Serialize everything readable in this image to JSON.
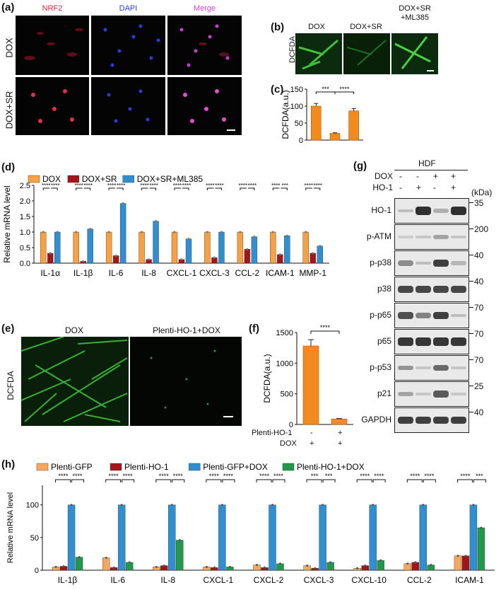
{
  "panels": {
    "a": {
      "label": "(a)",
      "columns": [
        "NRF2",
        "DAPI",
        "Merge"
      ],
      "rows": [
        "DOX",
        "DOX+SR"
      ],
      "colors": {
        "NRF2": "#e0203a",
        "DAPI": "#2a3cd8",
        "Merge": "#d040d8"
      }
    },
    "b": {
      "label": "(b)",
      "columns": [
        "DOX",
        "DOX+SR",
        "DOX+SR\n+ML385"
      ],
      "row": "DCFDA"
    },
    "c": {
      "label": "(c)",
      "ylabel": "DCFDA(a.u.)"
    },
    "d": {
      "label": "(d)",
      "ylabel": "Relative mRNA level"
    },
    "e": {
      "label": "(e)",
      "columns": [
        "DOX",
        "Plenti-HO-1+DOX"
      ],
      "row": "DCFDA"
    },
    "f": {
      "label": "(f)",
      "ylabel": "DCFDA(a.u.)",
      "rows": [
        {
          "name": "Plenti-HO-1",
          "values": [
            "-",
            "+"
          ]
        },
        {
          "name": "DOX",
          "values": [
            "+",
            "+"
          ]
        }
      ]
    },
    "g": {
      "label": "(g)",
      "header": "HDF",
      "kda_label": "(kDa)",
      "conditions": [
        {
          "name": "DOX",
          "values": [
            "-",
            "-",
            "+",
            "+"
          ]
        },
        {
          "name": "HO-1",
          "values": [
            "-",
            "+",
            "-",
            "+"
          ]
        }
      ],
      "blots": [
        {
          "name": "HO-1",
          "kda": "35",
          "bands": [
            0.1,
            0.95,
            0.2,
            0.95
          ]
        },
        {
          "name": "p-ATM",
          "kda": "200",
          "bands": [
            0.02,
            0.05,
            0.25,
            0.05
          ]
        },
        {
          "name": "p-p38",
          "kda": "40",
          "bands": [
            0.4,
            0.1,
            0.85,
            0.15
          ]
        },
        {
          "name": "p38",
          "kda": "40",
          "bands": [
            0.8,
            0.8,
            0.8,
            0.8
          ]
        },
        {
          "name": "p-p65",
          "kda": "70",
          "bands": [
            0.75,
            0.45,
            0.85,
            0.1
          ]
        },
        {
          "name": "p65",
          "kda": "70",
          "bands": [
            0.9,
            0.9,
            0.9,
            0.9
          ]
        },
        {
          "name": "p-p53",
          "kda": "70",
          "bands": [
            0.35,
            0.05,
            0.6,
            0.05
          ]
        },
        {
          "name": "p21",
          "kda": "25",
          "bands": [
            0.25,
            0.05,
            0.7,
            0.05
          ]
        },
        {
          "name": "GAPDH",
          "kda": "40",
          "bands": [
            0.85,
            0.85,
            0.85,
            0.85
          ]
        }
      ]
    },
    "h": {
      "label": "(h)",
      "ylabel": "Relative mRNA level"
    }
  },
  "chart_data": [
    {
      "id": "c",
      "type": "bar",
      "categories": [
        "DOX",
        "DOX+SR",
        "DOX+SR+ML385"
      ],
      "values": [
        100,
        20,
        86
      ],
      "ylabel": "DCFDA(a.u.)",
      "ylim": [
        0,
        150
      ],
      "yticks": [
        0,
        50,
        100,
        150
      ],
      "colors": [
        "#f28a1e",
        "#f28a1e",
        "#f28a1e"
      ],
      "significance": [
        {
          "from": 0,
          "to": 1,
          "label": "***"
        },
        {
          "from": 1,
          "to": 2,
          "label": "****"
        }
      ]
    },
    {
      "id": "d",
      "type": "bar",
      "categories": [
        "IL-1α",
        "IL-1β",
        "IL-6",
        "IL-8",
        "CXCL-1",
        "CXCL-3",
        "CCL-2",
        "ICAM-1",
        "MMP-1"
      ],
      "ylabel": "Relative mRNA level",
      "ylim": [
        0,
        2.5
      ],
      "yticks": [
        0.0,
        0.5,
        1.0,
        1.5,
        2.0,
        2.5
      ],
      "legend_position": "top",
      "series": [
        {
          "name": "DOX",
          "color": "#f7a142",
          "values": [
            1.0,
            1.0,
            1.0,
            1.0,
            1.0,
            1.0,
            1.0,
            1.0,
            1.0
          ]
        },
        {
          "name": "DOX+SR",
          "color": "#a31519",
          "values": [
            0.32,
            0.06,
            0.24,
            0.12,
            0.12,
            0.18,
            0.45,
            0.28,
            0.32
          ]
        },
        {
          "name": "DOX+SR+ML385",
          "color": "#2f8fd0",
          "values": [
            1.0,
            1.1,
            1.92,
            1.35,
            0.78,
            1.0,
            0.85,
            0.88,
            0.55
          ]
        }
      ],
      "significance": [
        "****",
        "****",
        "****",
        "****",
        "****",
        "****",
        "****",
        "****",
        "****",
        "****",
        "****",
        "****",
        "****",
        "****",
        "****",
        "***",
        "****",
        "****"
      ]
    },
    {
      "id": "f",
      "type": "bar",
      "categories": [
        "-/+",
        "+/+"
      ],
      "values": [
        1280,
        90
      ],
      "ylabel": "DCFDA(a.u.)",
      "ylim": [
        0,
        1500
      ],
      "yticks": [
        0,
        500,
        1000,
        1500
      ],
      "colors": [
        "#f28a1e",
        "#f28a1e"
      ],
      "significance": [
        {
          "from": 0,
          "to": 1,
          "label": "****"
        }
      ]
    },
    {
      "id": "h",
      "type": "bar",
      "categories": [
        "IL-1β",
        "IL-6",
        "IL-8",
        "CXCL-1",
        "CXCL-2",
        "CXCL-3",
        "CXCL-10",
        "CCL-2",
        "ICAM-1"
      ],
      "ylabel": "Relative mRNA level",
      "ylim": [
        0,
        130
      ],
      "yticks": [
        0,
        50,
        100
      ],
      "legend_position": "top",
      "series": [
        {
          "name": "Plenti-GFP",
          "color": "#f7a860",
          "values": [
            5,
            19,
            5,
            5,
            8,
            7,
            3,
            10,
            22
          ]
        },
        {
          "name": "Plenti-HO-1",
          "color": "#a31519",
          "values": [
            6,
            4,
            7,
            4,
            4,
            3,
            7,
            12,
            22
          ]
        },
        {
          "name": "Plenti-GFP+DOX",
          "color": "#2f8fd0",
          "values": [
            100,
            100,
            100,
            100,
            100,
            100,
            100,
            100,
            100
          ]
        },
        {
          "name": "Plenti-HO-1+DOX",
          "color": "#22984a",
          "values": [
            20,
            12,
            46,
            5,
            10,
            12,
            15,
            8,
            65
          ]
        }
      ],
      "significance": [
        "****",
        "****",
        "****",
        "****",
        "****",
        "****",
        "****",
        "****",
        "****",
        "****",
        "***",
        "***",
        "****",
        "****",
        "****",
        "****",
        "****",
        "***"
      ]
    }
  ]
}
